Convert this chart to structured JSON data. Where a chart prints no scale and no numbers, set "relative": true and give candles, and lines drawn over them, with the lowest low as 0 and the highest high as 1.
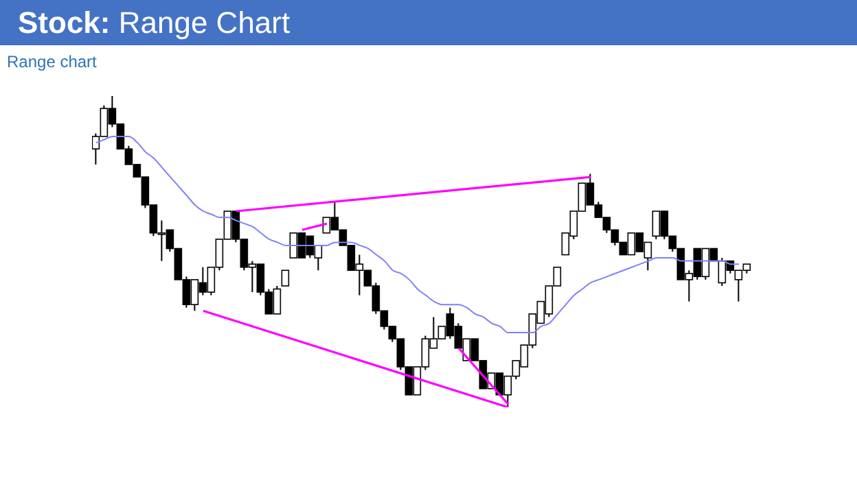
{
  "chart_data": {
    "type": "candlestick",
    "title": "Stock: Range Chart",
    "subtitle": "Range chart",
    "relative": true,
    "categories": [
      null,
      null,
      null,
      null,
      null,
      null,
      null,
      null,
      null,
      null,
      null,
      null,
      null,
      null,
      null,
      null,
      null,
      null,
      null,
      null,
      null,
      null,
      null,
      null,
      null,
      null,
      null,
      null,
      null,
      null,
      null,
      null,
      null,
      null,
      null,
      null,
      null,
      null,
      null,
      null,
      null,
      null,
      null,
      null,
      null,
      null,
      null,
      null,
      null,
      null,
      null,
      null,
      null,
      null,
      null,
      null,
      null,
      null,
      null,
      null,
      null,
      null,
      null,
      null,
      null,
      null,
      null,
      null,
      null,
      null,
      null,
      null,
      null,
      null,
      null,
      null,
      null,
      null,
      null,
      null
    ],
    "ohlc": [
      [
        0.83,
        0.88,
        0.78,
        0.87
      ],
      [
        0.87,
        0.97,
        0.87,
        0.96
      ],
      [
        0.96,
        1.0,
        0.9,
        0.91
      ],
      [
        0.91,
        0.91,
        0.83,
        0.83
      ],
      [
        0.83,
        0.84,
        0.78,
        0.78
      ],
      [
        0.78,
        0.78,
        0.74,
        0.74
      ],
      [
        0.74,
        0.74,
        0.64,
        0.65
      ],
      [
        0.65,
        0.65,
        0.55,
        0.56
      ],
      [
        0.56,
        0.6,
        0.47,
        0.56
      ],
      [
        0.57,
        0.57,
        0.5,
        0.51
      ],
      [
        0.51,
        0.51,
        0.41,
        0.41
      ],
      [
        0.41,
        0.42,
        0.32,
        0.33
      ],
      [
        0.33,
        0.41,
        0.31,
        0.41
      ],
      [
        0.4,
        0.45,
        0.36,
        0.37
      ],
      [
        0.37,
        0.45,
        0.36,
        0.45
      ],
      [
        0.45,
        0.54,
        0.44,
        0.54
      ],
      [
        0.54,
        0.63,
        0.54,
        0.63
      ],
      [
        0.63,
        0.63,
        0.53,
        0.54
      ],
      [
        0.54,
        0.54,
        0.44,
        0.45
      ],
      [
        0.45,
        0.47,
        0.37,
        0.46
      ],
      [
        0.46,
        0.46,
        0.36,
        0.37
      ],
      [
        0.37,
        0.38,
        0.3,
        0.3
      ],
      [
        0.3,
        0.39,
        0.3,
        0.38
      ],
      [
        0.39,
        0.44,
        0.39,
        0.44
      ],
      [
        0.48,
        0.56,
        0.48,
        0.56
      ],
      [
        0.56,
        0.56,
        0.48,
        0.48
      ],
      [
        0.55,
        0.55,
        0.48,
        0.49
      ],
      [
        0.48,
        0.52,
        0.44,
        0.52
      ],
      [
        0.56,
        0.61,
        0.56,
        0.61
      ],
      [
        0.61,
        0.66,
        0.57,
        0.57
      ],
      [
        0.57,
        0.57,
        0.52,
        0.52
      ],
      [
        0.52,
        0.52,
        0.44,
        0.44
      ],
      [
        0.44,
        0.49,
        0.36,
        0.46
      ],
      [
        0.44,
        0.44,
        0.39,
        0.39
      ],
      [
        0.39,
        0.4,
        0.3,
        0.31
      ],
      [
        0.31,
        0.31,
        0.25,
        0.26
      ],
      [
        0.26,
        0.26,
        0.21,
        0.22
      ],
      [
        0.22,
        0.22,
        0.12,
        0.13
      ],
      [
        0.13,
        0.13,
        0.04,
        0.04
      ],
      [
        0.04,
        0.13,
        0.04,
        0.13
      ],
      [
        0.13,
        0.23,
        0.12,
        0.22
      ],
      [
        0.19,
        0.29,
        0.19,
        0.22
      ],
      [
        0.22,
        0.26,
        0.22,
        0.26
      ],
      [
        0.3,
        0.32,
        0.22,
        0.23
      ],
      [
        0.26,
        0.27,
        0.19,
        0.19
      ],
      [
        0.15,
        0.22,
        0.15,
        0.22
      ],
      [
        0.22,
        0.22,
        0.15,
        0.15
      ],
      [
        0.15,
        0.15,
        0.06,
        0.06
      ],
      [
        0.06,
        0.11,
        0.06,
        0.11
      ],
      [
        0.11,
        0.11,
        0.04,
        0.04
      ],
      [
        0.04,
        0.1,
        0.0,
        0.1
      ],
      [
        0.1,
        0.15,
        0.09,
        0.15
      ],
      [
        0.13,
        0.2,
        0.13,
        0.2
      ],
      [
        0.2,
        0.3,
        0.19,
        0.3
      ],
      [
        0.27,
        0.34,
        0.27,
        0.34
      ],
      [
        0.3,
        0.39,
        0.29,
        0.39
      ],
      [
        0.39,
        0.45,
        0.39,
        0.45
      ],
      [
        0.49,
        0.56,
        0.49,
        0.56
      ],
      [
        0.55,
        0.63,
        0.54,
        0.63
      ],
      [
        0.63,
        0.72,
        0.63,
        0.72
      ],
      [
        0.72,
        0.75,
        0.65,
        0.65
      ],
      [
        0.65,
        0.66,
        0.61,
        0.61
      ],
      [
        0.61,
        0.61,
        0.56,
        0.57
      ],
      [
        0.57,
        0.57,
        0.52,
        0.53
      ],
      [
        0.53,
        0.53,
        0.49,
        0.49
      ],
      [
        0.49,
        0.56,
        0.49,
        0.56
      ],
      [
        0.56,
        0.56,
        0.5,
        0.5
      ],
      [
        0.48,
        0.53,
        0.44,
        0.53
      ],
      [
        0.55,
        0.63,
        0.54,
        0.63
      ],
      [
        0.63,
        0.63,
        0.54,
        0.55
      ],
      [
        0.55,
        0.55,
        0.5,
        0.51
      ],
      [
        0.51,
        0.51,
        0.41,
        0.41
      ],
      [
        0.41,
        0.44,
        0.34,
        0.43
      ],
      [
        0.51,
        0.51,
        0.41,
        0.42
      ],
      [
        0.42,
        0.51,
        0.41,
        0.51
      ],
      [
        0.51,
        0.51,
        0.47,
        0.47
      ],
      [
        0.4,
        0.48,
        0.39,
        0.47
      ],
      [
        0.47,
        0.47,
        0.43,
        0.44
      ],
      [
        0.41,
        0.44,
        0.34,
        0.44
      ],
      [
        0.44,
        0.46,
        0.43,
        0.46
      ]
    ],
    "series": [
      {
        "type": "line",
        "color": "#8080ff",
        "values": [
          0.85,
          0.86,
          0.87,
          0.87,
          0.87,
          0.85,
          0.82,
          0.8,
          0.77,
          0.74,
          0.71,
          0.68,
          0.65,
          0.63,
          0.62,
          0.61,
          0.61,
          0.6,
          0.59,
          0.58,
          0.56,
          0.54,
          0.53,
          0.52,
          0.52,
          0.52,
          0.52,
          0.52,
          0.52,
          0.53,
          0.53,
          0.53,
          0.52,
          0.51,
          0.49,
          0.47,
          0.44,
          0.43,
          0.41,
          0.38,
          0.36,
          0.34,
          0.33,
          0.33,
          0.33,
          0.32,
          0.3,
          0.29,
          0.27,
          0.26,
          0.24,
          0.24,
          0.24,
          0.24,
          0.26,
          0.27,
          0.3,
          0.33,
          0.36,
          0.38,
          0.4,
          0.41,
          0.42,
          0.43,
          0.44,
          0.45,
          0.46,
          0.47,
          0.48,
          0.48,
          0.48,
          0.47,
          0.47,
          0.47,
          0.47,
          0.47,
          0.47,
          0.46,
          0.46,
          null
        ]
      },
      {
        "type": "line",
        "color": "#ff00ff",
        "values": [
          null,
          null,
          null,
          null,
          null,
          null,
          null,
          null,
          null,
          null,
          null,
          null,
          null,
          null,
          null,
          null,
          null,
          0.63,
          null,
          null,
          null,
          null,
          null,
          null,
          null,
          null,
          null,
          null,
          null,
          null,
          null,
          null,
          null,
          null,
          null,
          null,
          null,
          null,
          null,
          null,
          null,
          null,
          null,
          null,
          null,
          null,
          null,
          null,
          null,
          null,
          null,
          null,
          null,
          null,
          null,
          null,
          null,
          null,
          null,
          null,
          0.74,
          null,
          null,
          null,
          null,
          null,
          null,
          null,
          null,
          null,
          null,
          null,
          null,
          null,
          null,
          null,
          null,
          null,
          null,
          null
        ]
      },
      {
        "type": "line",
        "color": "#ff00ff",
        "values": [
          null,
          null,
          null,
          null,
          null,
          null,
          null,
          null,
          null,
          null,
          null,
          null,
          null,
          0.31,
          null,
          null,
          null,
          null,
          null,
          null,
          null,
          null,
          null,
          null,
          null,
          null,
          null,
          null,
          null,
          null,
          null,
          null,
          null,
          null,
          null,
          null,
          null,
          null,
          null,
          null,
          null,
          null,
          null,
          null,
          null,
          null,
          null,
          null,
          null,
          null,
          0.0,
          null,
          null,
          null,
          null,
          null,
          null,
          null,
          null,
          null,
          null,
          null,
          null,
          null,
          null,
          null,
          null,
          null,
          null,
          null,
          null,
          null,
          null,
          null,
          null,
          null,
          null,
          null,
          null,
          null
        ]
      },
      {
        "type": "line",
        "color": "#ff00ff",
        "values": [
          null,
          null,
          null,
          null,
          null,
          null,
          null,
          null,
          null,
          null,
          null,
          null,
          null,
          null,
          null,
          null,
          null,
          null,
          null,
          null,
          null,
          null,
          null,
          null,
          null,
          0.57,
          null,
          null,
          0.59,
          null,
          null,
          null,
          null,
          null,
          null,
          null,
          null,
          null,
          null,
          null,
          null,
          null,
          null,
          null,
          null,
          null,
          null,
          null,
          null,
          null,
          null,
          null,
          null,
          null,
          null,
          null,
          null,
          null,
          null,
          null,
          null,
          null,
          null,
          null,
          null,
          null,
          null,
          null,
          null,
          null,
          null,
          null,
          null,
          null,
          null,
          null,
          null,
          null,
          null,
          null
        ]
      },
      {
        "type": "line",
        "color": "#ff00ff",
        "values": [
          null,
          null,
          null,
          null,
          null,
          null,
          null,
          null,
          null,
          null,
          null,
          null,
          null,
          null,
          null,
          null,
          null,
          null,
          null,
          null,
          null,
          null,
          null,
          null,
          null,
          null,
          null,
          null,
          null,
          null,
          null,
          null,
          null,
          null,
          null,
          null,
          null,
          null,
          null,
          null,
          null,
          null,
          null,
          null,
          0.19,
          null,
          null,
          null,
          null,
          null,
          0.01,
          null,
          null,
          null,
          null,
          null,
          null,
          null,
          null,
          null,
          null,
          null,
          null,
          null,
          null,
          null,
          null,
          null,
          null,
          null,
          null,
          null,
          null,
          null,
          null,
          null,
          null,
          null,
          null,
          null
        ]
      }
    ]
  }
}
